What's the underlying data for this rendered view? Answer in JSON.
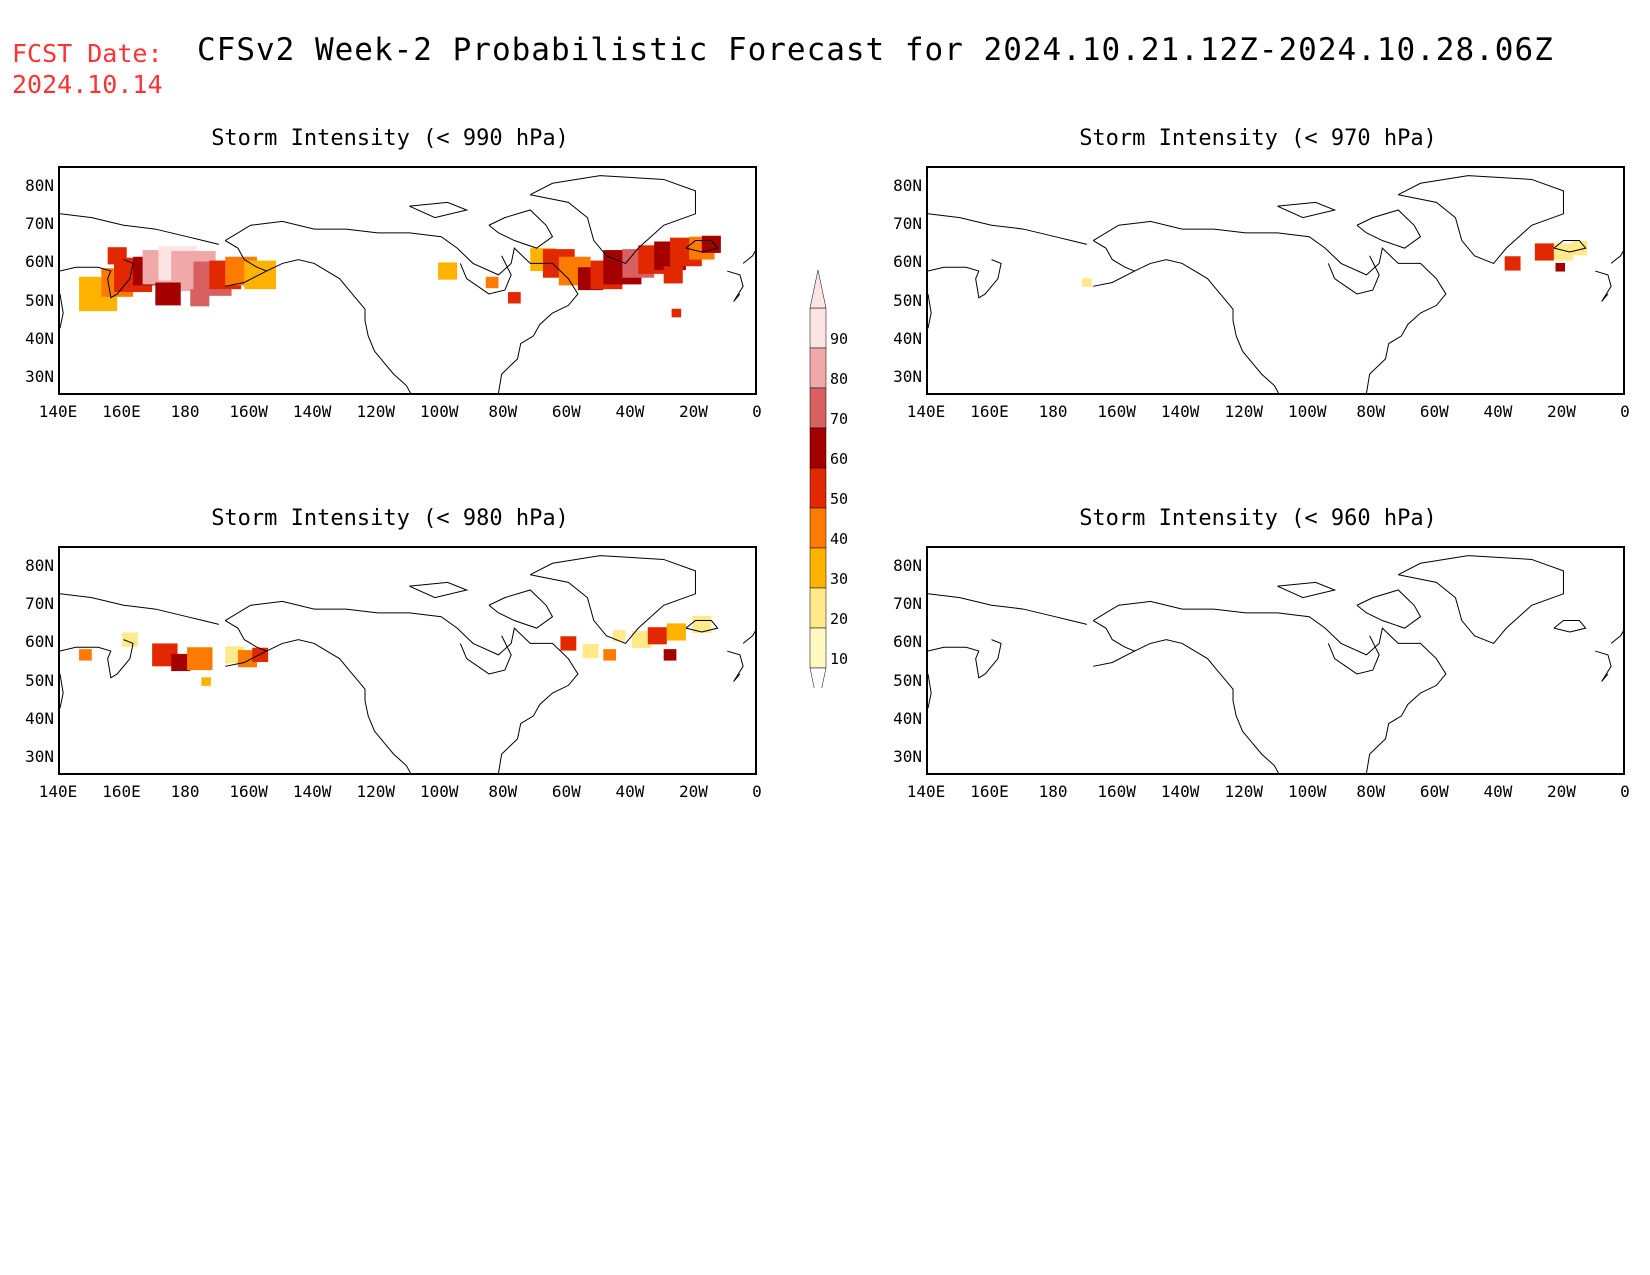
{
  "header": {
    "fcst_label": "FCST Date:",
    "fcst_date": "2024.10.14",
    "title": "CFSv2 Week-2 Probabilistic Forecast for 2024.10.21.12Z-2024.10.28.06Z"
  },
  "axes": {
    "lat_labels": [
      "80N",
      "70N",
      "60N",
      "50N",
      "40N",
      "30N"
    ],
    "lon_labels": [
      "140E",
      "160E",
      "180",
      "160W",
      "140W",
      "120W",
      "100W",
      "80W",
      "60W",
      "40W",
      "20W",
      "0"
    ]
  },
  "panels": [
    {
      "id": "p990",
      "title": "Storm Intensity (< 990 hPa)"
    },
    {
      "id": "p970",
      "title": "Storm Intensity (< 970 hPa)"
    },
    {
      "id": "p980",
      "title": "Storm Intensity (< 980 hPa)"
    },
    {
      "id": "p960",
      "title": "Storm Intensity (< 960 hPa)"
    }
  ],
  "colorbar": {
    "levels": [
      "10",
      "20",
      "30",
      "40",
      "50",
      "60",
      "70",
      "80",
      "90"
    ],
    "colors": [
      "#fff8c0",
      "#ffe98a",
      "#ffb300",
      "#ff7a00",
      "#e22800",
      "#a50000",
      "#d86060",
      "#f0a8a8",
      "#fce4e4"
    ]
  },
  "probability_areas": {
    "p990": [
      {
        "region": "Kamchatka - Bering Sea - Gulf of Alaska",
        "level": "90"
      },
      {
        "region": "Hudson Bay - Labrador - North Atlantic",
        "level": "60"
      }
    ],
    "p970": [
      {
        "region": "Bering Sea",
        "level": "10"
      },
      {
        "region": "Denmark Strait - Iceland",
        "level": "50"
      }
    ],
    "p980": [
      {
        "region": "Kamchatka - Aleutians - Gulf of Alaska",
        "level": "80"
      },
      {
        "region": "Labrador Sea - Iceland",
        "level": "60"
      }
    ],
    "p960": []
  }
}
